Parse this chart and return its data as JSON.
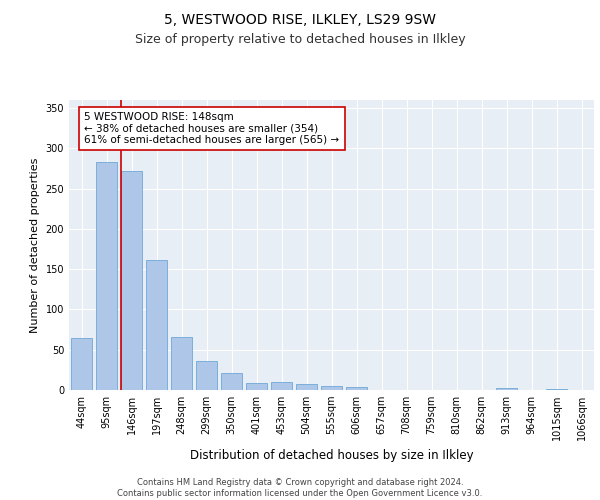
{
  "title1": "5, WESTWOOD RISE, ILKLEY, LS29 9SW",
  "title2": "Size of property relative to detached houses in Ilkley",
  "xlabel": "Distribution of detached houses by size in Ilkley",
  "ylabel": "Number of detached properties",
  "categories": [
    "44sqm",
    "95sqm",
    "146sqm",
    "197sqm",
    "248sqm",
    "299sqm",
    "350sqm",
    "401sqm",
    "453sqm",
    "504sqm",
    "555sqm",
    "606sqm",
    "657sqm",
    "708sqm",
    "759sqm",
    "810sqm",
    "862sqm",
    "913sqm",
    "964sqm",
    "1015sqm",
    "1066sqm"
  ],
  "values": [
    65,
    283,
    272,
    162,
    66,
    36,
    21,
    9,
    10,
    8,
    5,
    4,
    0,
    0,
    0,
    0,
    0,
    2,
    0,
    1,
    0
  ],
  "bar_color": "#aec6e8",
  "bar_edge_color": "#5a9fd4",
  "property_line_idx": 2,
  "property_line_color": "#cc0000",
  "annotation_text": "5 WESTWOOD RISE: 148sqm\n← 38% of detached houses are smaller (354)\n61% of semi-detached houses are larger (565) →",
  "annotation_box_color": "#ffffff",
  "annotation_box_edge_color": "#cc0000",
  "footer_line1": "Contains HM Land Registry data © Crown copyright and database right 2024.",
  "footer_line2": "Contains public sector information licensed under the Open Government Licence v3.0.",
  "background_color": "#e8eef5",
  "ylim": [
    0,
    360
  ],
  "yticks": [
    0,
    50,
    100,
    150,
    200,
    250,
    300,
    350
  ],
  "title1_fontsize": 10,
  "title2_fontsize": 9,
  "xlabel_fontsize": 8.5,
  "ylabel_fontsize": 8,
  "tick_fontsize": 7,
  "annotation_fontsize": 7.5,
  "footer_fontsize": 6
}
